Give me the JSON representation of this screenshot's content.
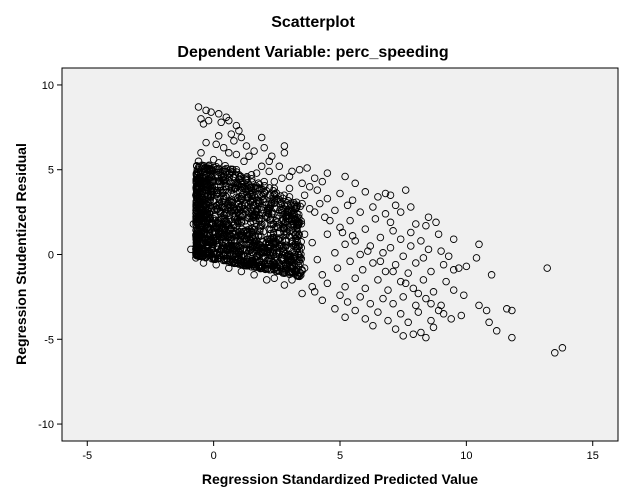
{
  "chart_data": {
    "type": "scatter",
    "title": "Scatterplot",
    "subtitle": "Dependent Variable: perc_speeding",
    "xlabel": "Regression Standardized Predicted Value",
    "ylabel": "Regression Studentized Residual",
    "xlim": [
      -6,
      16
    ],
    "ylim": [
      -11,
      11
    ],
    "xticks": [
      -5,
      0,
      5,
      10,
      15
    ],
    "yticks": [
      -10,
      -5,
      0,
      5,
      10
    ],
    "grid": false,
    "marker": "open-circle",
    "colors": {
      "plot_background": "#f0f0f0",
      "marker_stroke": "#000000"
    },
    "points": [
      [
        -0.6,
        8.7
      ],
      [
        -0.3,
        8.5
      ],
      [
        -0.1,
        8.4
      ],
      [
        0.2,
        8.3
      ],
      [
        0.5,
        8.1
      ],
      [
        -0.5,
        8.0
      ],
      [
        -0.2,
        7.9
      ],
      [
        0.6,
        7.9
      ],
      [
        0.3,
        7.8
      ],
      [
        -0.4,
        7.7
      ],
      [
        0.9,
        7.6
      ],
      [
        1.0,
        7.3
      ],
      [
        0.7,
        7.1
      ],
      [
        0.2,
        7.0
      ],
      [
        1.1,
        6.9
      ],
      [
        0.8,
        6.7
      ],
      [
        1.9,
        6.9
      ],
      [
        -0.3,
        6.6
      ],
      [
        0.1,
        6.5
      ],
      [
        1.3,
        6.4
      ],
      [
        0.4,
        6.3
      ],
      [
        2.0,
        6.3
      ],
      [
        1.6,
        6.1
      ],
      [
        2.8,
        6.4
      ],
      [
        -0.5,
        6.0
      ],
      [
        0.9,
        5.9
      ],
      [
        2.3,
        5.8
      ],
      [
        2.8,
        6.0
      ],
      [
        0.0,
        5.6
      ],
      [
        1.2,
        5.5
      ],
      [
        3.7,
        5.1
      ],
      [
        1.9,
        5.2
      ],
      [
        2.6,
        5.2
      ],
      [
        3.4,
        5.0
      ],
      [
        2.2,
        4.9
      ],
      [
        4.5,
        4.8
      ],
      [
        1.5,
        4.7
      ],
      [
        3.0,
        4.6
      ],
      [
        4.0,
        4.5
      ],
      [
        5.2,
        4.6
      ],
      [
        2.4,
        4.3
      ],
      [
        3.5,
        4.2
      ],
      [
        4.3,
        4.3
      ],
      [
        5.6,
        4.2
      ],
      [
        3.0,
        3.9
      ],
      [
        4.1,
        3.8
      ],
      [
        6.0,
        3.7
      ],
      [
        6.8,
        3.6
      ],
      [
        5.0,
        3.6
      ],
      [
        3.6,
        3.5
      ],
      [
        4.5,
        3.3
      ],
      [
        5.5,
        3.2
      ],
      [
        6.5,
        3.4
      ],
      [
        7.0,
        3.5
      ],
      [
        7.6,
        3.8
      ],
      [
        4.2,
        3.0
      ],
      [
        5.3,
        2.9
      ],
      [
        6.3,
        2.8
      ],
      [
        7.2,
        2.9
      ],
      [
        7.8,
        2.8
      ],
      [
        3.8,
        2.7
      ],
      [
        4.8,
        2.6
      ],
      [
        5.8,
        2.5
      ],
      [
        6.8,
        2.4
      ],
      [
        7.4,
        2.5
      ],
      [
        8.5,
        2.2
      ],
      [
        3.3,
        2.4
      ],
      [
        4.4,
        2.2
      ],
      [
        5.4,
        2.0
      ],
      [
        6.4,
        2.1
      ],
      [
        7.0,
        1.9
      ],
      [
        8.0,
        1.8
      ],
      [
        8.8,
        1.9
      ],
      [
        5.0,
        1.6
      ],
      [
        6.0,
        1.5
      ],
      [
        7.1,
        1.4
      ],
      [
        7.8,
        1.3
      ],
      [
        8.4,
        1.7
      ],
      [
        4.5,
        1.2
      ],
      [
        5.5,
        1.1
      ],
      [
        6.6,
        1.0
      ],
      [
        7.4,
        0.9
      ],
      [
        8.2,
        0.8
      ],
      [
        8.9,
        1.2
      ],
      [
        9.5,
        0.9
      ],
      [
        10.5,
        0.6
      ],
      [
        5.2,
        0.6
      ],
      [
        6.2,
        0.5
      ],
      [
        7.0,
        0.4
      ],
      [
        7.8,
        0.5
      ],
      [
        8.5,
        0.3
      ],
      [
        9.0,
        0.2
      ],
      [
        4.8,
        0.1
      ],
      [
        5.8,
        0.0
      ],
      [
        6.7,
        0.1
      ],
      [
        7.5,
        -0.1
      ],
      [
        8.3,
        -0.2
      ],
      [
        9.3,
        -0.1
      ],
      [
        10.4,
        -0.2
      ],
      [
        5.4,
        -0.4
      ],
      [
        6.3,
        -0.5
      ],
      [
        7.2,
        -0.6
      ],
      [
        8.0,
        -0.5
      ],
      [
        9.1,
        -0.6
      ],
      [
        9.7,
        -0.8
      ],
      [
        4.9,
        -0.8
      ],
      [
        5.9,
        -0.9
      ],
      [
        6.8,
        -1.0
      ],
      [
        7.7,
        -1.1
      ],
      [
        8.6,
        -1.0
      ],
      [
        9.5,
        -0.9
      ],
      [
        10.0,
        -0.7
      ],
      [
        11.0,
        -1.2
      ],
      [
        13.2,
        -0.8
      ],
      [
        5.6,
        -1.4
      ],
      [
        6.5,
        -1.5
      ],
      [
        7.4,
        -1.6
      ],
      [
        8.3,
        -1.5
      ],
      [
        9.2,
        -1.6
      ],
      [
        4.5,
        -1.7
      ],
      [
        5.2,
        -1.9
      ],
      [
        6.0,
        -2.0
      ],
      [
        6.9,
        -2.1
      ],
      [
        7.9,
        -2.0
      ],
      [
        8.7,
        -2.2
      ],
      [
        9.5,
        -2.1
      ],
      [
        4.0,
        -2.2
      ],
      [
        5.0,
        -2.4
      ],
      [
        5.8,
        -2.5
      ],
      [
        6.7,
        -2.6
      ],
      [
        7.5,
        -2.5
      ],
      [
        8.4,
        -2.6
      ],
      [
        9.9,
        -2.4
      ],
      [
        3.5,
        -2.3
      ],
      [
        4.3,
        -2.7
      ],
      [
        5.3,
        -2.8
      ],
      [
        6.2,
        -2.9
      ],
      [
        7.1,
        -2.9
      ],
      [
        8.0,
        -3.0
      ],
      [
        9.0,
        -3.0
      ],
      [
        10.5,
        -3.0
      ],
      [
        11.6,
        -3.2
      ],
      [
        4.8,
        -3.2
      ],
      [
        5.6,
        -3.3
      ],
      [
        6.5,
        -3.4
      ],
      [
        7.4,
        -3.5
      ],
      [
        8.1,
        -3.4
      ],
      [
        8.9,
        -3.3
      ],
      [
        9.8,
        -3.6
      ],
      [
        10.8,
        -3.3
      ],
      [
        11.8,
        -3.3
      ],
      [
        5.2,
        -3.7
      ],
      [
        6.0,
        -3.8
      ],
      [
        6.9,
        -3.9
      ],
      [
        7.7,
        -4.0
      ],
      [
        8.6,
        -3.9
      ],
      [
        9.4,
        -3.8
      ],
      [
        10.9,
        -4.0
      ],
      [
        6.3,
        -4.2
      ],
      [
        7.2,
        -4.4
      ],
      [
        8.2,
        -4.6
      ],
      [
        8.7,
        -4.3
      ],
      [
        11.2,
        -4.5
      ],
      [
        7.5,
        -4.8
      ],
      [
        7.9,
        -4.7
      ],
      [
        8.4,
        -4.9
      ],
      [
        11.8,
        -4.9
      ],
      [
        13.8,
        -5.5
      ],
      [
        13.5,
        -5.8
      ],
      [
        2.0,
        3.7
      ],
      [
        2.5,
        3.3
      ],
      [
        1.8,
        3.0
      ],
      [
        2.7,
        2.6
      ],
      [
        3.2,
        2.0
      ],
      [
        2.9,
        1.5
      ],
      [
        3.6,
        1.2
      ],
      [
        3.9,
        0.7
      ],
      [
        3.4,
        0.2
      ],
      [
        4.1,
        -0.3
      ],
      [
        3.6,
        -0.8
      ],
      [
        4.3,
        -1.2
      ],
      [
        3.1,
        -1.5
      ],
      [
        3.9,
        -1.9
      ],
      [
        2.8,
        -1.8
      ],
      [
        3.3,
        -1.2
      ],
      [
        2.4,
        -1.4
      ],
      [
        2.9,
        -0.5
      ],
      [
        2.2,
        0.9
      ],
      [
        2.6,
        1.8
      ],
      [
        1.7,
        2.3
      ],
      [
        2.0,
        4.3
      ],
      [
        1.2,
        4.0
      ],
      [
        1.6,
        3.5
      ],
      [
        0.9,
        5.0
      ],
      [
        1.4,
        5.8
      ],
      [
        0.6,
        6.0
      ],
      [
        2.2,
        5.5
      ],
      [
        3.1,
        4.9
      ],
      [
        2.7,
        4.5
      ],
      [
        3.8,
        4.0
      ],
      [
        1.0,
        3.2
      ],
      [
        0.4,
        4.6
      ],
      [
        -0.2,
        5.2
      ],
      [
        -0.6,
        5.5
      ],
      [
        -0.4,
        4.3
      ],
      [
        -0.7,
        3.5
      ],
      [
        -0.5,
        2.6
      ],
      [
        -0.8,
        1.8
      ],
      [
        -0.6,
        0.9
      ],
      [
        -0.9,
        0.3
      ],
      [
        -0.7,
        -0.2
      ],
      [
        -0.4,
        -0.5
      ],
      [
        0.1,
        -0.6
      ],
      [
        0.6,
        -0.8
      ],
      [
        1.1,
        -1.0
      ],
      [
        1.6,
        -1.2
      ],
      [
        2.1,
        -1.5
      ],
      [
        -0.3,
        1.5
      ],
      [
        0.3,
        2.2
      ],
      [
        0.8,
        1.4
      ],
      [
        1.3,
        0.6
      ],
      [
        1.8,
        0.0
      ],
      [
        0.5,
        0.3
      ],
      [
        0.0,
        0.8
      ],
      [
        -0.2,
        3.0
      ],
      [
        0.7,
        3.8
      ],
      [
        1.5,
        2.6
      ],
      [
        2.3,
        2.4
      ],
      [
        1.0,
        4.7
      ],
      [
        0.2,
        5.4
      ],
      [
        1.7,
        4.8
      ],
      [
        2.4,
        3.9
      ],
      [
        3.0,
        3.4
      ],
      [
        3.5,
        3.0
      ],
      [
        4.0,
        2.5
      ],
      [
        4.6,
        2.0
      ],
      [
        5.1,
        1.3
      ],
      [
        5.6,
        0.8
      ],
      [
        6.1,
        0.2
      ],
      [
        6.6,
        -0.4
      ],
      [
        7.1,
        -1.0
      ],
      [
        7.6,
        -1.7
      ],
      [
        8.1,
        -2.3
      ],
      [
        8.6,
        -2.9
      ],
      [
        9.1,
        -3.5
      ]
    ],
    "dense_cluster": {
      "x_range": [
        -0.7,
        3.5
      ],
      "y_range": [
        -1.3,
        5.5
      ],
      "y_floor_slope": -0.3,
      "note_shown": false
    }
  }
}
